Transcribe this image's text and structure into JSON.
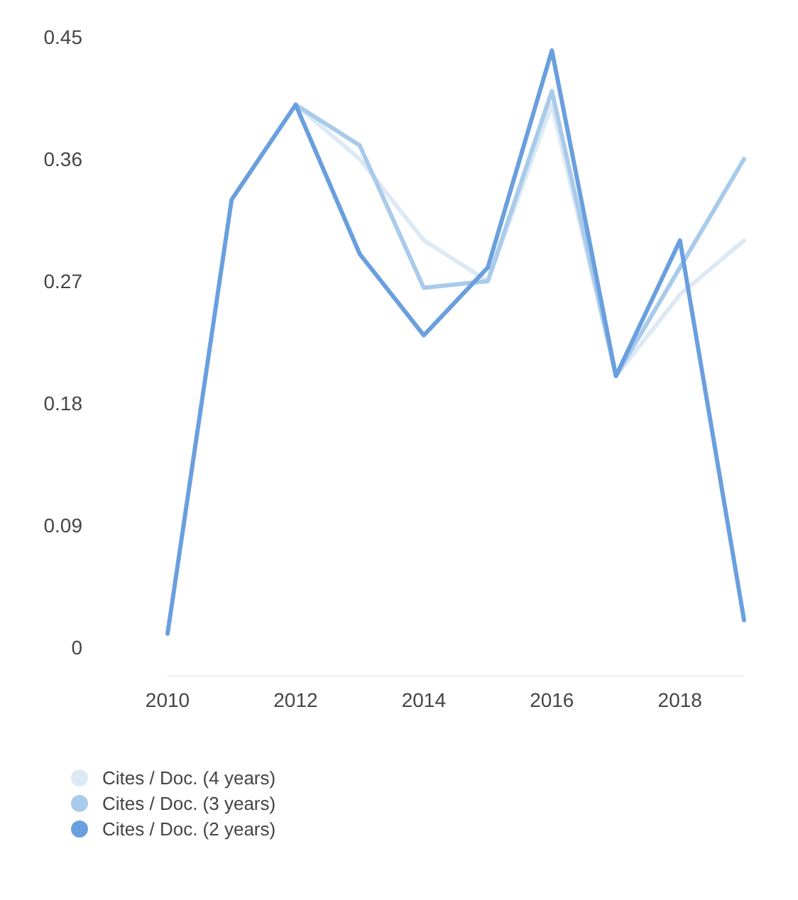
{
  "chart_data": {
    "type": "line",
    "x": [
      2010,
      2011,
      2012,
      2013,
      2014,
      2015,
      2016,
      2017,
      2018,
      2019
    ],
    "series": [
      {
        "name": "Cites / Doc. (4 years)",
        "color": "#dde9f5",
        "values": [
          null,
          null,
          0.4,
          0.36,
          0.3,
          0.27,
          0.4,
          0.2,
          0.26,
          0.3
        ]
      },
      {
        "name": "Cites / Doc. (3 years)",
        "color": "#a9cbeb",
        "values": [
          null,
          null,
          0.4,
          0.37,
          0.265,
          0.27,
          0.41,
          0.2,
          0.28,
          0.36
        ]
      },
      {
        "name": "Cites / Doc. (2 years)",
        "color": "#6a9fde",
        "values": [
          0.01,
          0.33,
          0.4,
          0.29,
          0.23,
          0.28,
          0.44,
          0.2,
          0.3,
          0.02
        ]
      }
    ],
    "xlim": [
      2010,
      2019
    ],
    "xticks": [
      2010,
      2012,
      2014,
      2016,
      2018
    ],
    "ylim": [
      0,
      0.45
    ],
    "yticks": [
      0,
      0.09,
      0.18,
      0.27,
      0.36,
      0.45
    ],
    "grid": false,
    "legend": "bottom left",
    "marker": "none",
    "line_style": "solid"
  }
}
